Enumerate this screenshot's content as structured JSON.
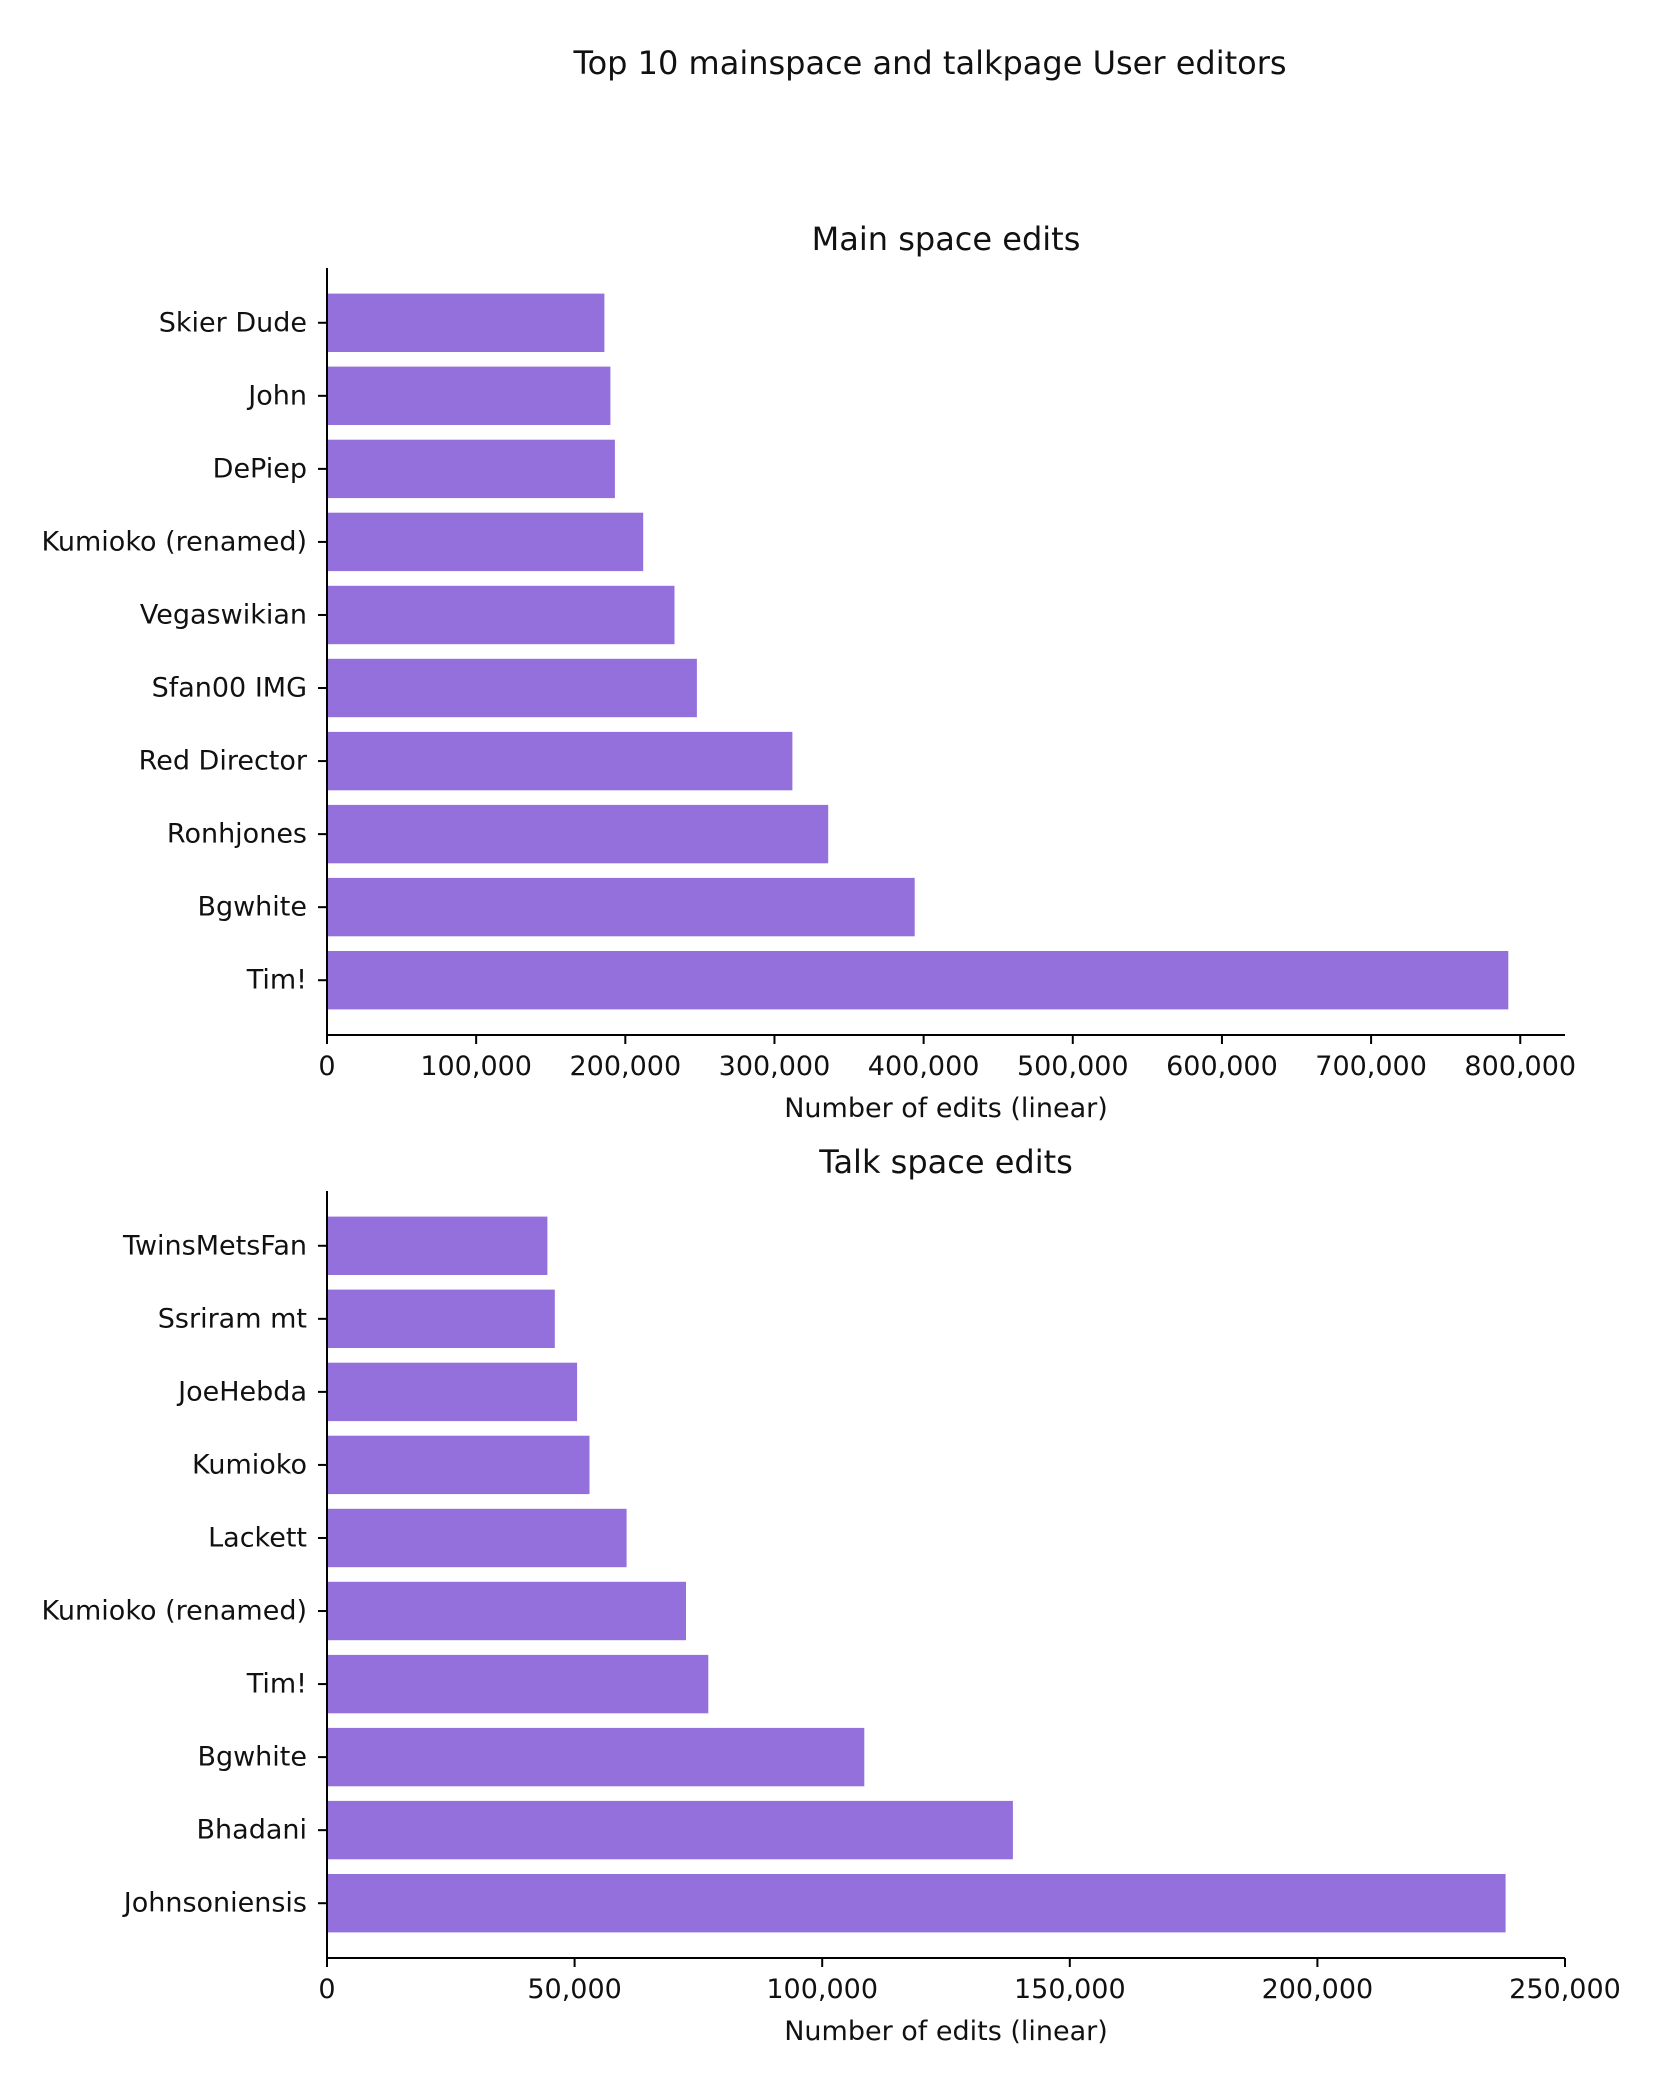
{
  "title": "Top 10 mainspace and talkpage User editors",
  "bar_color": "#9370db",
  "chart_data": [
    {
      "type": "bar",
      "orientation": "horizontal",
      "title": "Main space edits",
      "xlabel": "Number of edits (linear)",
      "ylabel": "",
      "xlim": [
        0,
        830000
      ],
      "xticks": [
        0,
        100000,
        200000,
        300000,
        400000,
        500000,
        600000,
        700000,
        800000
      ],
      "xtick_labels": [
        "0",
        "100,000",
        "200,000",
        "300,000",
        "400,000",
        "500,000",
        "600,000",
        "700,000",
        "800,000"
      ],
      "categories": [
        "Skier Dude",
        "John",
        "DePiep",
        "Kumioko (renamed)",
        "Vegaswikian",
        "Sfan00 IMG",
        "Red Director",
        "Ronhjones",
        "Bgwhite",
        "Tim!"
      ],
      "values": [
        186000,
        190000,
        193000,
        212000,
        233000,
        248000,
        312000,
        336000,
        394000,
        792000
      ]
    },
    {
      "type": "bar",
      "orientation": "horizontal",
      "title": "Talk space edits",
      "xlabel": "Number of edits (linear)",
      "ylabel": "",
      "xlim": [
        0,
        250000
      ],
      "xticks": [
        0,
        50000,
        100000,
        150000,
        200000,
        250000
      ],
      "xtick_labels": [
        "0",
        "50,000",
        "100,000",
        "150,000",
        "200,000",
        "250,000"
      ],
      "categories": [
        "TwinsMetsFan",
        "Ssriram mt",
        "JoeHebda",
        "Kumioko",
        "Lackett",
        "Kumioko (renamed)",
        "Tim!",
        "Bgwhite",
        "Bhadani",
        "Johnsoniensis"
      ],
      "values": [
        44500,
        46000,
        50500,
        53000,
        60500,
        72500,
        77000,
        108500,
        138500,
        238000
      ]
    }
  ]
}
